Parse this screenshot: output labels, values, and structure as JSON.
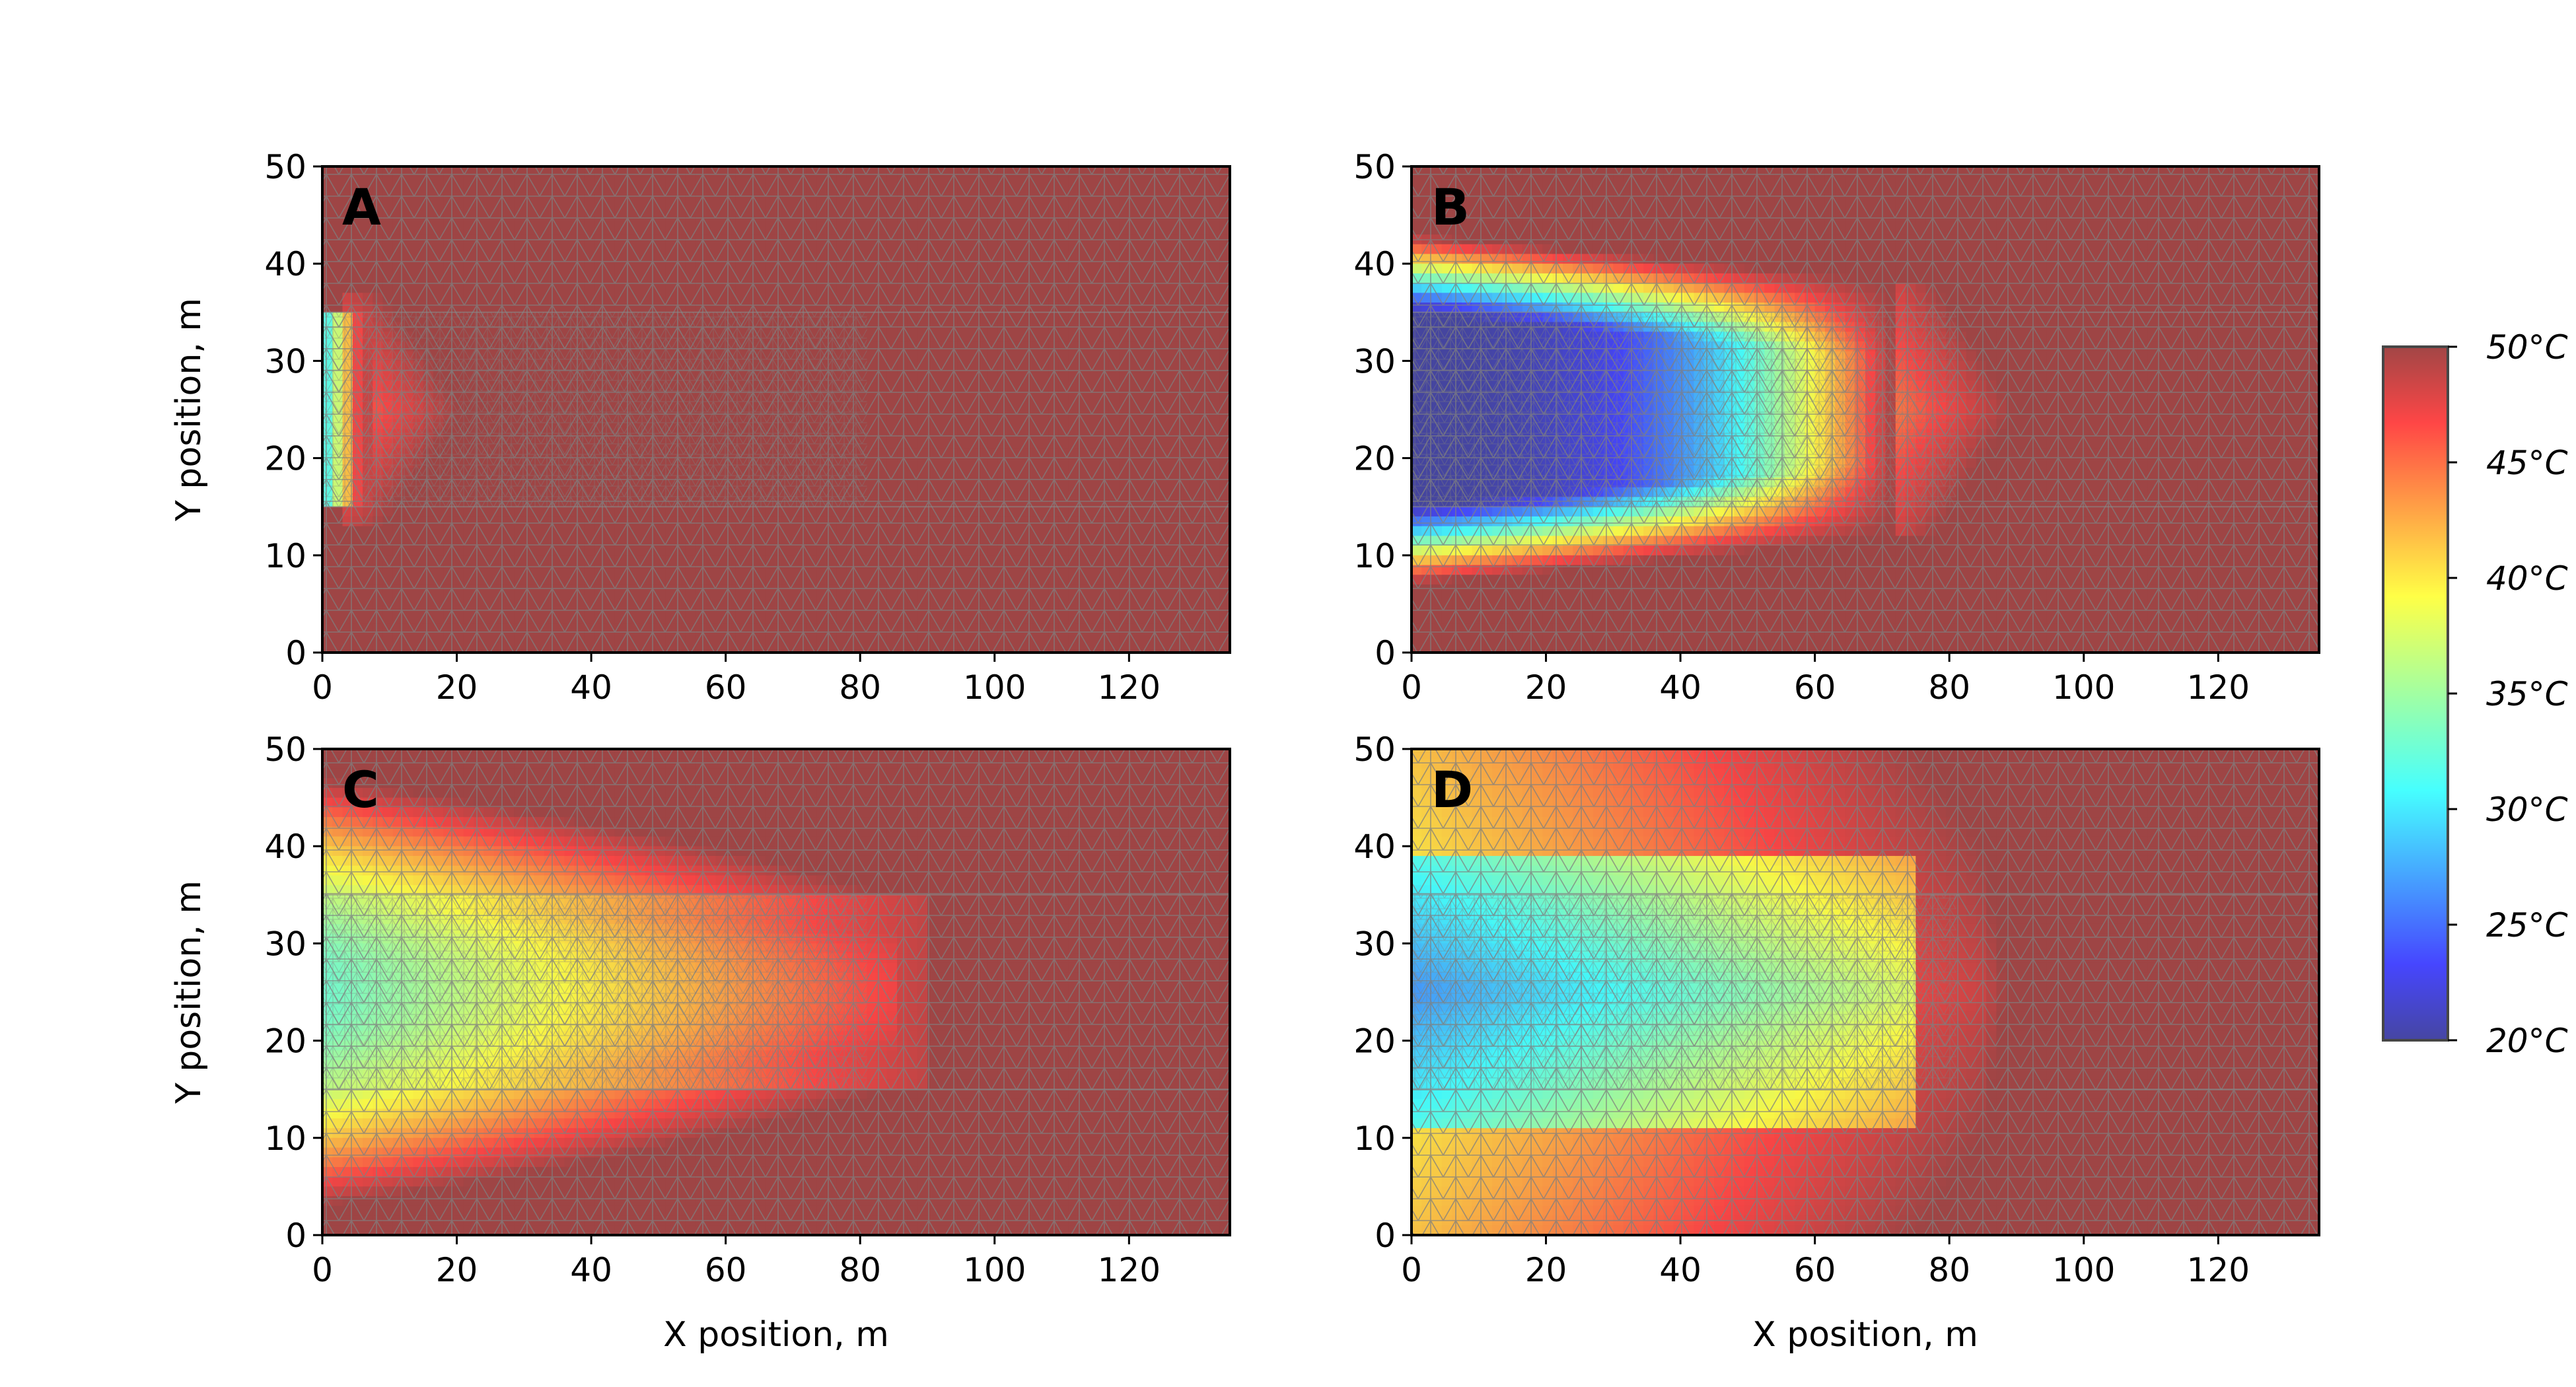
{
  "chart_data": {
    "type": "heatmap",
    "xlabel": "X position, m",
    "ylabel": "Y position, m",
    "xlim": [
      0,
      135
    ],
    "ylim": [
      0,
      50
    ],
    "xticks": [
      0,
      20,
      40,
      60,
      80,
      100,
      120
    ],
    "yticks": [
      0,
      10,
      20,
      30,
      40,
      50
    ],
    "colormap": "jet",
    "colorbar": {
      "range": [
        20,
        50
      ],
      "ticks": [
        50,
        45,
        40,
        35,
        30,
        25,
        20
      ],
      "tick_labels": [
        "50°C",
        "45°C",
        "40°C",
        "35°C",
        "30°C",
        "25°C",
        "20°C"
      ]
    },
    "panels": [
      {
        "label": "A",
        "description_values": {
          "inlet_x": 0,
          "cold_zone_end_x": 3,
          "band_y": [
            15,
            35
          ]
        },
        "field": {
          "front_x": 3,
          "core_temp": 38,
          "edge_spread": 0,
          "band_center_y": 25
        }
      },
      {
        "label": "B",
        "field": {
          "front_x": 72,
          "core_temp": 20,
          "edge_spread": 6,
          "band_center_y": 25
        }
      },
      {
        "label": "C",
        "field": {
          "front_x": 70,
          "core_temp": 33,
          "edge_spread": 9,
          "band_center_y": 25
        }
      },
      {
        "label": "D",
        "field": {
          "front_x": 100,
          "core_temp": 27,
          "edge_spread": 25,
          "band_center_y": 25
        }
      }
    ]
  }
}
